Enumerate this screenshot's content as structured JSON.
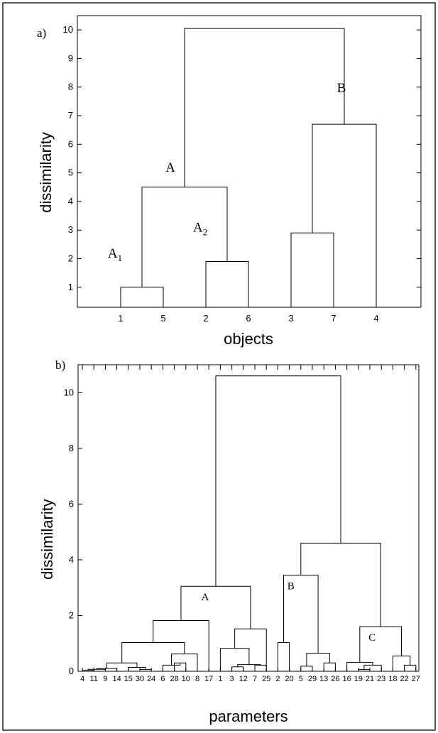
{
  "chart_data": [
    {
      "type": "dendrogram",
      "panel_label": "a)",
      "xlabel": "objects",
      "ylabel": "dissimilarity",
      "ylim": [
        0.3,
        10.5
      ],
      "yticks": [
        1,
        2,
        3,
        4,
        5,
        6,
        7,
        8,
        9,
        10
      ],
      "leaves": [
        "1",
        "5",
        "2",
        "6",
        "3",
        "7",
        "4"
      ],
      "merges": [
        {
          "left": "leaf:0",
          "right": "leaf:1",
          "height": 1.0
        },
        {
          "left": "leaf:2",
          "right": "leaf:3",
          "height": 1.9
        },
        {
          "left": "leaf:4",
          "right": "leaf:5",
          "height": 2.9
        },
        {
          "left": "node:0",
          "right": "node:1",
          "height": 4.5
        },
        {
          "left": "node:2",
          "right": "leaf:6",
          "height": 6.7
        },
        {
          "left": "node:3",
          "right": "node:4",
          "height": 10.05
        }
      ],
      "cluster_labels": [
        {
          "text": "A",
          "at_node": 3
        },
        {
          "text": "A",
          "sub": "1",
          "at_node": 0
        },
        {
          "text": "A",
          "sub": "2",
          "at_node": 1
        },
        {
          "text": "B",
          "at_node": 4
        }
      ]
    },
    {
      "type": "dendrogram",
      "panel_label": "b)",
      "xlabel": "parameters",
      "ylabel": "dissimilarity",
      "ylim": [
        0,
        11
      ],
      "yticks": [
        0,
        2,
        4,
        6,
        8,
        10
      ],
      "leaves": [
        "4",
        "11",
        "9",
        "14",
        "15",
        "30",
        "24",
        "6",
        "28",
        "10",
        "8",
        "17",
        "1",
        "3",
        "12",
        "7",
        "25",
        "2",
        "20",
        "5",
        "29",
        "13",
        "26",
        "16",
        "19",
        "21",
        "23",
        "18",
        "22",
        "27"
      ],
      "merges": [
        {
          "left": "leaf:0",
          "right": "leaf:1",
          "height": 0.04
        },
        {
          "left": "node:0",
          "right": "leaf:2",
          "height": 0.07
        },
        {
          "left": "node:1",
          "right": "leaf:3",
          "height": 0.1
        },
        {
          "left": "leaf:5",
          "right": "leaf:6",
          "height": 0.06
        },
        {
          "left": "leaf:4",
          "right": "node:3",
          "height": 0.14
        },
        {
          "left": "node:2",
          "right": "node:4",
          "height": 0.3
        },
        {
          "left": "leaf:8",
          "right": "leaf:9",
          "height": 0.3
        },
        {
          "left": "leaf:7",
          "right": "node:6",
          "height": 0.22
        },
        {
          "left": "node:7",
          "right": "leaf:10",
          "height": 0.62
        },
        {
          "left": "node:5",
          "right": "node:8",
          "height": 1.03
        },
        {
          "left": "node:9",
          "right": "leaf:11",
          "height": 1.82
        },
        {
          "left": "leaf:13",
          "right": "leaf:14",
          "height": 0.16
        },
        {
          "left": "leaf:15",
          "right": "leaf:16",
          "height": 0.22
        },
        {
          "left": "node:11",
          "right": "node:12",
          "height": 0.24
        },
        {
          "left": "leaf:12",
          "right": "node:13",
          "height": 0.82
        },
        {
          "left": "node:14",
          "right": "leaf:16",
          "height": 1.52
        },
        {
          "left": "node:10",
          "right": "node:15",
          "height": 3.05
        },
        {
          "left": "leaf:19",
          "right": "leaf:20",
          "height": 0.18
        },
        {
          "left": "leaf:21",
          "right": "leaf:22",
          "height": 0.3
        },
        {
          "left": "node:17",
          "right": "node:18",
          "height": 0.65
        },
        {
          "left": "leaf:17",
          "right": "leaf:18",
          "height": 1.03
        },
        {
          "left": "node:20",
          "right": "node:19",
          "height": 3.45
        },
        {
          "left": "leaf:24",
          "right": "leaf:25",
          "height": 0.06
        },
        {
          "left": "node:22",
          "right": "leaf:26",
          "height": 0.22
        },
        {
          "left": "leaf:23",
          "right": "node:23",
          "height": 0.32
        },
        {
          "left": "leaf:28",
          "right": "leaf:29",
          "height": 0.22
        },
        {
          "left": "leaf:27",
          "right": "node:25",
          "height": 0.55
        },
        {
          "left": "node:24",
          "right": "node:26",
          "height": 1.6
        },
        {
          "left": "node:21",
          "right": "node:27",
          "height": 4.6
        },
        {
          "left": "node:16",
          "right": "node:28",
          "height": 10.6
        }
      ],
      "cluster_labels": [
        {
          "text": "A",
          "at_node": 16
        },
        {
          "text": "B",
          "at_node": 21
        },
        {
          "text": "C",
          "at_node": 27
        }
      ]
    }
  ]
}
